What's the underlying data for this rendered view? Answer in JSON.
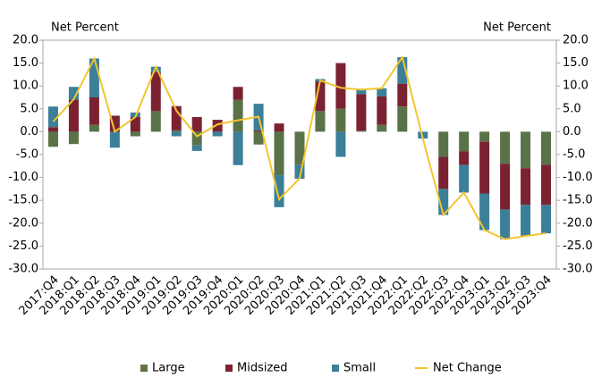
{
  "chart_data": {
    "type": "bar",
    "y_label": "Net Percent",
    "y2_label": "Net Percent",
    "categories": [
      "2017:Q4",
      "2018:Q1",
      "2018:Q2",
      "2018:Q3",
      "2018:Q4",
      "2019:Q1",
      "2019:Q2",
      "2019:Q3",
      "2019:Q4",
      "2020:Q1",
      "2020:Q2",
      "2020:Q3",
      "2020:Q4",
      "2021:Q1",
      "2021:Q2",
      "2021:Q3",
      "2021:Q4",
      "2022:Q1",
      "2022:Q2",
      "2022:Q3",
      "2022:Q4",
      "2023:Q1",
      "2023:Q2",
      "2023:Q3",
      "2023:Q4"
    ],
    "series": [
      {
        "name": "Large",
        "color": "#5a7248",
        "values": [
          -3.3,
          -2.7,
          1.5,
          0,
          -1.0,
          4.5,
          0.3,
          -3.0,
          0,
          7.0,
          -2.8,
          -9.5,
          -7.3,
          4.5,
          5.0,
          0.2,
          1.5,
          5.5,
          0,
          -5.5,
          -4.3,
          -2.2,
          -7.0,
          -8.0,
          -7.2
        ]
      },
      {
        "name": "Midsized",
        "color": "#7b2231",
        "values": [
          1.0,
          7.0,
          6.0,
          3.5,
          3.2,
          8.5,
          5.3,
          3.2,
          2.6,
          2.8,
          0.3,
          1.8,
          0,
          6.5,
          10.0,
          8.0,
          6.2,
          5.0,
          0,
          -7.0,
          -3.0,
          -11.3,
          -10.0,
          -8.0,
          -8.8
        ]
      },
      {
        "name": "Small",
        "color": "#3b7f99",
        "values": [
          4.5,
          2.8,
          8.5,
          -3.5,
          1.0,
          1.2,
          -1.0,
          -1.2,
          -1.0,
          -7.3,
          5.8,
          -7.0,
          -3.0,
          0.5,
          -5.5,
          1.0,
          1.8,
          5.8,
          -1.5,
          -5.7,
          -6.0,
          -8.0,
          -6.5,
          -6.8,
          -6.2
        ]
      },
      {
        "name": "Net Change",
        "type": "line",
        "axis": "y2",
        "color": "#f2c531",
        "values": [
          2.2,
          7.1,
          16.0,
          0,
          3.2,
          14.2,
          4.6,
          -1.0,
          1.6,
          2.5,
          3.3,
          -14.8,
          -10.2,
          11.2,
          9.6,
          9.2,
          9.5,
          16.3,
          -1.5,
          -18.2,
          -13.3,
          -21.5,
          -23.5,
          -22.8,
          -22.2
        ]
      }
    ],
    "ylim": [
      -30,
      20
    ],
    "yticks": [
      {
        "value": -30,
        "label": "-30.0"
      },
      {
        "value": -25,
        "label": "-25.0"
      },
      {
        "value": -20,
        "label": "-20.0"
      },
      {
        "value": -15,
        "label": "-15.0"
      },
      {
        "value": -10,
        "label": "-10.0"
      },
      {
        "value": -5,
        "label": "-5.0"
      },
      {
        "value": 0,
        "label": "0.0"
      },
      {
        "value": 5,
        "label": "5.0"
      },
      {
        "value": 10,
        "label": "10.0"
      },
      {
        "value": 15,
        "label": "15.0"
      },
      {
        "value": 20,
        "label": "20.0"
      }
    ],
    "y2lim": [
      -30,
      20
    ],
    "y2ticks": [
      {
        "value": -30,
        "label": "-30.0"
      },
      {
        "value": -25,
        "label": "-25.0"
      },
      {
        "value": -20,
        "label": "-20.0"
      },
      {
        "value": -15,
        "label": "-15.0"
      },
      {
        "value": -10,
        "label": "-10.0"
      },
      {
        "value": -5,
        "label": "-5.0"
      },
      {
        "value": 0,
        "label": "0.0"
      },
      {
        "value": 5,
        "label": "5.0"
      },
      {
        "value": 10,
        "label": "10.0"
      },
      {
        "value": 15,
        "label": "15.0"
      },
      {
        "value": 20,
        "label": "20.0"
      }
    ],
    "legend": "bottom",
    "grid": false
  }
}
